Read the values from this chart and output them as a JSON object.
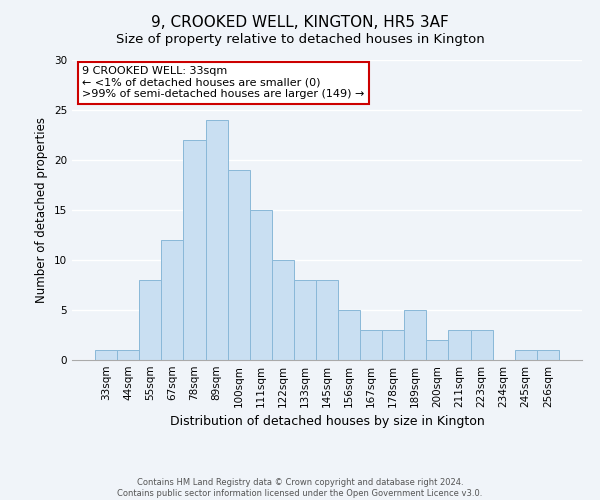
{
  "title": "9, CROOKED WELL, KINGTON, HR5 3AF",
  "subtitle": "Size of property relative to detached houses in Kington",
  "xlabel": "Distribution of detached houses by size in Kington",
  "ylabel": "Number of detached properties",
  "bin_labels": [
    "33sqm",
    "44sqm",
    "55sqm",
    "67sqm",
    "78sqm",
    "89sqm",
    "100sqm",
    "111sqm",
    "122sqm",
    "133sqm",
    "145sqm",
    "156sqm",
    "167sqm",
    "178sqm",
    "189sqm",
    "200sqm",
    "211sqm",
    "223sqm",
    "234sqm",
    "245sqm",
    "256sqm"
  ],
  "bar_heights": [
    1,
    1,
    8,
    12,
    22,
    24,
    19,
    15,
    10,
    8,
    8,
    5,
    3,
    3,
    5,
    2,
    3,
    3,
    0,
    1,
    1
  ],
  "bar_color": "#c9dff2",
  "bar_edge_color": "#89b8d8",
  "annotation_text": "9 CROOKED WELL: 33sqm\n← <1% of detached houses are smaller (0)\n>99% of semi-detached houses are larger (149) →",
  "annotation_box_color": "#ffffff",
  "annotation_border_color": "#cc0000",
  "footer_line1": "Contains HM Land Registry data © Crown copyright and database right 2024.",
  "footer_line2": "Contains public sector information licensed under the Open Government Licence v3.0.",
  "ylim": [
    0,
    30
  ],
  "yticks": [
    0,
    5,
    10,
    15,
    20,
    25,
    30
  ],
  "background_color": "#f0f4f9",
  "grid_color": "#ffffff",
  "title_fontsize": 11,
  "subtitle_fontsize": 9.5,
  "ylabel_fontsize": 8.5,
  "xlabel_fontsize": 9,
  "tick_fontsize": 7.5,
  "annotation_fontsize": 8,
  "footer_fontsize": 6
}
